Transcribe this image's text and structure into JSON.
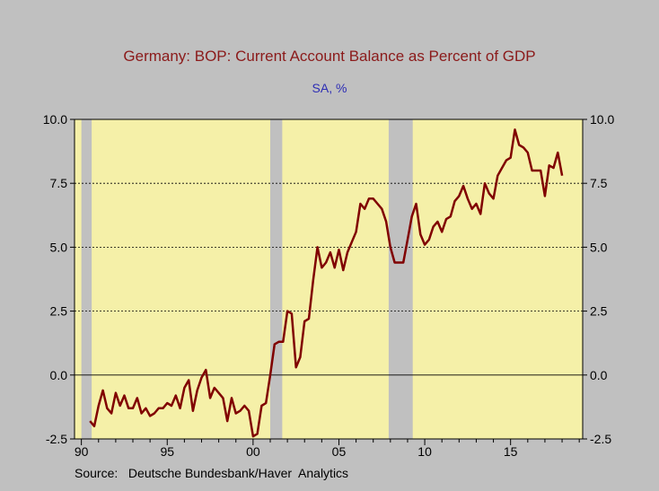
{
  "chart_data": {
    "type": "line",
    "title": "Germany: BOP: Current Account Balance as Percent of GDP",
    "subtitle": "SA, %",
    "source": "Source:   Deutsche Bundesbank/Haver  Analytics",
    "xlabel": "",
    "ylabel": "",
    "xlim": [
      1989.6,
      2019.2
    ],
    "ylim": [
      -2.5,
      10.0
    ],
    "y_ticks": [
      10.0,
      7.5,
      5.0,
      2.5,
      0.0,
      -2.5
    ],
    "y_tick_labels": [
      "10.0",
      "7.5",
      "5.0",
      "2.5",
      "0.0",
      "-2.5"
    ],
    "x_ticks": [
      1990,
      1995,
      2000,
      2005,
      2010,
      2015
    ],
    "x_tick_labels": [
      "90",
      "95",
      "00",
      "05",
      "10",
      "15"
    ],
    "grid": "dashed horizontal at 2.5, 5.0, 7.5; solid zero line",
    "colors": {
      "line": "#800000",
      "plot_bg": "#f5f0a8",
      "recession": "#c0c0c0",
      "page_bg": "#c0c0c0"
    },
    "recession_shading": [
      [
        1990.0,
        1990.6
      ],
      [
        2001.0,
        2001.7
      ],
      [
        2007.9,
        2009.3
      ]
    ],
    "series": [
      {
        "values": [
          [
            1990.5,
            -1.8
          ],
          [
            1990.75,
            -2.0
          ],
          [
            1991.0,
            -1.2
          ],
          [
            1991.25,
            -0.6
          ],
          [
            1991.5,
            -1.3
          ],
          [
            1991.75,
            -1.5
          ],
          [
            1992.0,
            -0.7
          ],
          [
            1992.25,
            -1.2
          ],
          [
            1992.5,
            -0.8
          ],
          [
            1992.75,
            -1.3
          ],
          [
            1993.0,
            -1.3
          ],
          [
            1993.25,
            -0.9
          ],
          [
            1993.5,
            -1.5
          ],
          [
            1993.75,
            -1.3
          ],
          [
            1994.0,
            -1.6
          ],
          [
            1994.25,
            -1.5
          ],
          [
            1994.5,
            -1.3
          ],
          [
            1994.75,
            -1.3
          ],
          [
            1995.0,
            -1.1
          ],
          [
            1995.25,
            -1.2
          ],
          [
            1995.5,
            -0.8
          ],
          [
            1995.75,
            -1.3
          ],
          [
            1996.0,
            -0.5
          ],
          [
            1996.25,
            -0.2
          ],
          [
            1996.5,
            -1.4
          ],
          [
            1996.75,
            -0.6
          ],
          [
            1997.0,
            -0.1
          ],
          [
            1997.25,
            0.2
          ],
          [
            1997.5,
            -0.9
          ],
          [
            1997.75,
            -0.5
          ],
          [
            1998.0,
            -0.7
          ],
          [
            1998.25,
            -0.9
          ],
          [
            1998.5,
            -1.8
          ],
          [
            1998.75,
            -0.9
          ],
          [
            1999.0,
            -1.5
          ],
          [
            1999.25,
            -1.4
          ],
          [
            1999.5,
            -1.2
          ],
          [
            1999.75,
            -1.4
          ],
          [
            2000.0,
            -2.4
          ],
          [
            2000.25,
            -2.3
          ],
          [
            2000.5,
            -1.2
          ],
          [
            2000.75,
            -1.1
          ],
          [
            2001.0,
            0.0
          ],
          [
            2001.25,
            1.2
          ],
          [
            2001.5,
            1.3
          ],
          [
            2001.75,
            1.3
          ],
          [
            2002.0,
            2.5
          ],
          [
            2002.25,
            2.4
          ],
          [
            2002.5,
            0.3
          ],
          [
            2002.75,
            0.7
          ],
          [
            2003.0,
            2.1
          ],
          [
            2003.25,
            2.2
          ],
          [
            2003.5,
            3.7
          ],
          [
            2003.75,
            5.0
          ],
          [
            2004.0,
            4.2
          ],
          [
            2004.25,
            4.4
          ],
          [
            2004.5,
            4.8
          ],
          [
            2004.75,
            4.2
          ],
          [
            2005.0,
            4.9
          ],
          [
            2005.25,
            4.1
          ],
          [
            2005.5,
            4.8
          ],
          [
            2005.75,
            5.2
          ],
          [
            2006.0,
            5.6
          ],
          [
            2006.25,
            6.7
          ],
          [
            2006.5,
            6.5
          ],
          [
            2006.75,
            6.9
          ],
          [
            2007.0,
            6.9
          ],
          [
            2007.25,
            6.7
          ],
          [
            2007.5,
            6.5
          ],
          [
            2007.75,
            6.0
          ],
          [
            2008.0,
            5.0
          ],
          [
            2008.25,
            4.4
          ],
          [
            2008.5,
            4.4
          ],
          [
            2008.75,
            4.4
          ],
          [
            2009.0,
            5.3
          ],
          [
            2009.25,
            6.2
          ],
          [
            2009.5,
            6.7
          ],
          [
            2009.75,
            5.5
          ],
          [
            2010.0,
            5.1
          ],
          [
            2010.25,
            5.3
          ],
          [
            2010.5,
            5.8
          ],
          [
            2010.75,
            6.0
          ],
          [
            2011.0,
            5.6
          ],
          [
            2011.25,
            6.1
          ],
          [
            2011.5,
            6.2
          ],
          [
            2011.75,
            6.8
          ],
          [
            2012.0,
            7.0
          ],
          [
            2012.25,
            7.4
          ],
          [
            2012.5,
            6.9
          ],
          [
            2012.75,
            6.5
          ],
          [
            2013.0,
            6.7
          ],
          [
            2013.25,
            6.3
          ],
          [
            2013.5,
            7.5
          ],
          [
            2013.75,
            7.1
          ],
          [
            2014.0,
            6.9
          ],
          [
            2014.25,
            7.8
          ],
          [
            2014.5,
            8.1
          ],
          [
            2014.75,
            8.4
          ],
          [
            2015.0,
            8.5
          ],
          [
            2015.25,
            9.6
          ],
          [
            2015.5,
            9.0
          ],
          [
            2015.75,
            8.9
          ],
          [
            2016.0,
            8.7
          ],
          [
            2016.25,
            8.0
          ],
          [
            2016.5,
            8.0
          ],
          [
            2016.75,
            8.0
          ],
          [
            2017.0,
            7.0
          ],
          [
            2017.25,
            8.2
          ],
          [
            2017.5,
            8.1
          ],
          [
            2017.75,
            8.7
          ],
          [
            2018.0,
            7.8
          ]
        ]
      }
    ]
  }
}
